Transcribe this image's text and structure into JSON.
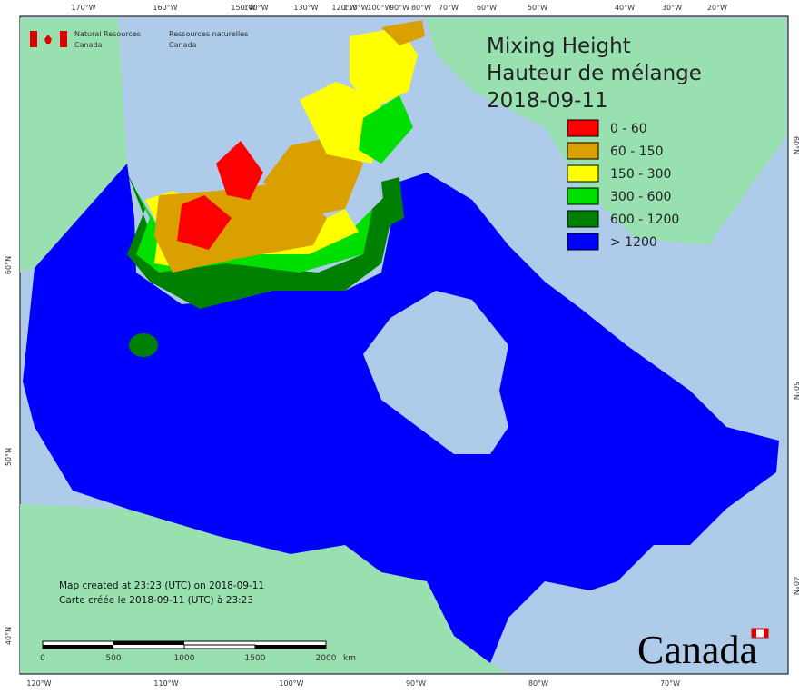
{
  "header": {
    "title": [
      "Mixing Height",
      "Hauteur de mélange",
      "2018-09-11"
    ],
    "agency_en": [
      "Natural Resources",
      "Canada"
    ],
    "agency_fr": [
      "Ressources naturelles",
      "Canada"
    ]
  },
  "legend": [
    {
      "label": "0 - 60",
      "color": "#ff0000"
    },
    {
      "label": "60 - 150",
      "color": "#d9a000"
    },
    {
      "label": "150 - 300",
      "color": "#ffff00"
    },
    {
      "label": "300 - 600",
      "color": "#00e000"
    },
    {
      "label": "600 - 1200",
      "color": "#008000"
    },
    {
      "label": "> 1200",
      "color": "#0000ff"
    }
  ],
  "graticule": {
    "top": [
      "170°W",
      "160°W",
      "150°W",
      "140°W",
      "130°W",
      "120°W",
      "110°W",
      "100°W",
      "90°W",
      "80°W",
      "70°W",
      "60°W",
      "50°W",
      "40°W",
      "30°W",
      "20°W"
    ],
    "bottom": [
      "120°W",
      "110°W",
      "100°W",
      "90°W",
      "80°W",
      "70°W"
    ],
    "left": [
      "60°N",
      "50°N",
      "40°N"
    ],
    "right": [
      "60°N",
      "50°N",
      "40°N"
    ]
  },
  "footer": {
    "created": [
      "Map created at 23:23 (UTC) on 2018-09-11",
      "Carte créée le 2018-09-11 (UTC) à 23:23"
    ],
    "scale_labels": [
      "0",
      "500",
      "1000",
      "1500",
      "2000"
    ],
    "scale_unit": "km",
    "wordmark": "Canada"
  }
}
